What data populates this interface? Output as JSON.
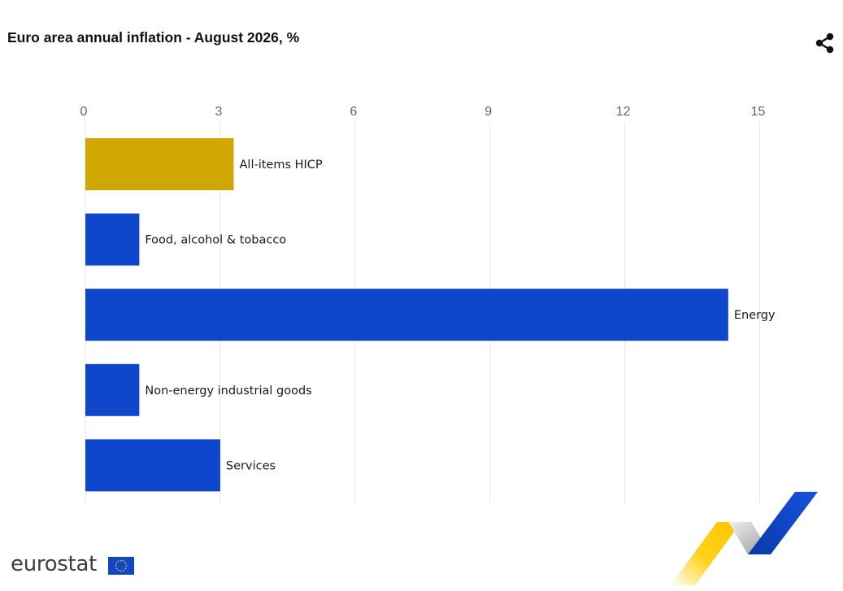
{
  "title": "Euro area annual inflation - August 2026, %",
  "logo": {
    "text": "eurostat"
  },
  "colors": {
    "highlight": "#CFA700",
    "bar": "#0E47CB",
    "grid": "#e6e6ea",
    "eu_blue": "#0E47CB",
    "eu_yellow": "#FFCC00"
  },
  "icons": {
    "share": "share-icon",
    "flag": "eu-flag-icon"
  },
  "chart_data": {
    "type": "bar",
    "orientation": "horizontal",
    "title": "Euro area annual inflation - August 2026, %",
    "categories": [
      "All-items HICP",
      "Food, alcohol & tobacco",
      "Energy",
      "Non-energy industrial goods",
      "Services"
    ],
    "values": [
      3.3,
      1.2,
      14.3,
      1.2,
      3.0
    ],
    "highlight_index": 0,
    "xlim": [
      0,
      16.5
    ],
    "xticks": [
      0,
      3,
      6,
      9,
      12,
      15
    ],
    "axis_position": "top",
    "grid": true,
    "legend": "none"
  }
}
